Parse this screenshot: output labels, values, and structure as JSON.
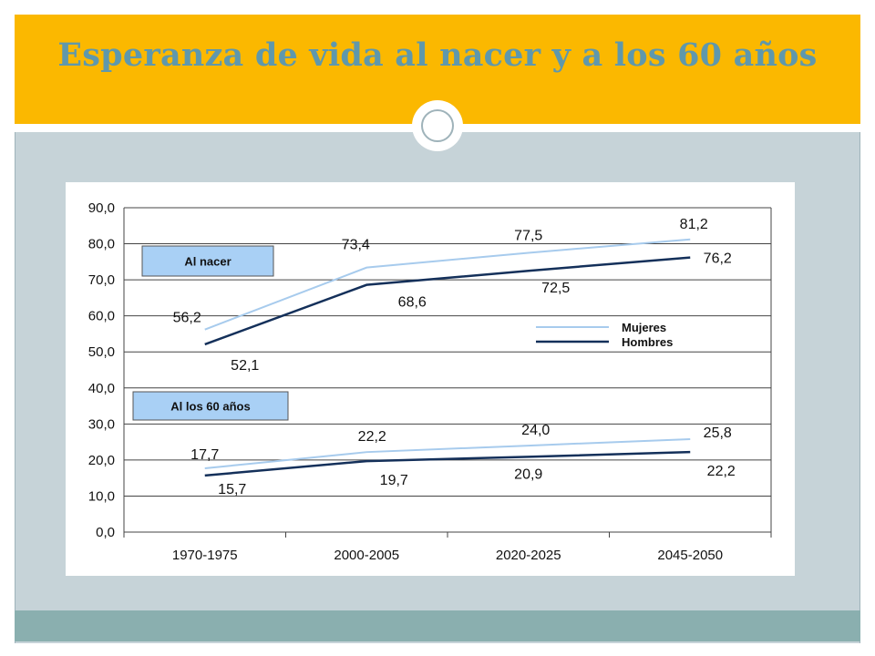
{
  "slide": {
    "title": "Esperanza de vida al nacer y a los 60 años"
  },
  "chart_data": {
    "type": "line",
    "categories": [
      "1970-1975",
      "2000-2005",
      "2020-2025",
      "2045-2050"
    ],
    "ylim": [
      0,
      90
    ],
    "yticks": [
      "0,0",
      "10,0",
      "20,0",
      "30,0",
      "40,0",
      "50,0",
      "60,0",
      "70,0",
      "80,0",
      "90,0"
    ],
    "grid": true,
    "groups": [
      {
        "label": "Al nacer",
        "series": [
          {
            "name": "Mujeres",
            "values": [
              56.2,
              73.4,
              77.5,
              81.2
            ],
            "labels": [
              "56,2",
              "73,4",
              "77,5",
              "81,2"
            ]
          },
          {
            "name": "Hombres",
            "values": [
              52.1,
              68.6,
              72.5,
              76.2
            ],
            "labels": [
              "52,1",
              "68,6",
              "72,5",
              "76,2"
            ]
          }
        ]
      },
      {
        "label": "Al los 60 años",
        "series": [
          {
            "name": "Mujeres",
            "values": [
              17.7,
              22.2,
              24.0,
              25.8
            ],
            "labels": [
              "17,7",
              "22,2",
              "24,0",
              "25,8"
            ]
          },
          {
            "name": "Hombres",
            "values": [
              15.7,
              19.7,
              20.9,
              22.2
            ],
            "labels": [
              "15,7",
              "19,7",
              "20,9",
              "22,2"
            ]
          }
        ]
      }
    ],
    "legend": {
      "placement": "right",
      "entries": [
        {
          "name": "Mujeres",
          "color": "#a7cbed"
        },
        {
          "name": "Hombres",
          "color": "#14305a"
        }
      ]
    },
    "colors": {
      "mujeres": "#a7cbed",
      "hombres": "#14305a",
      "group_box": "#a9d0f5"
    }
  }
}
